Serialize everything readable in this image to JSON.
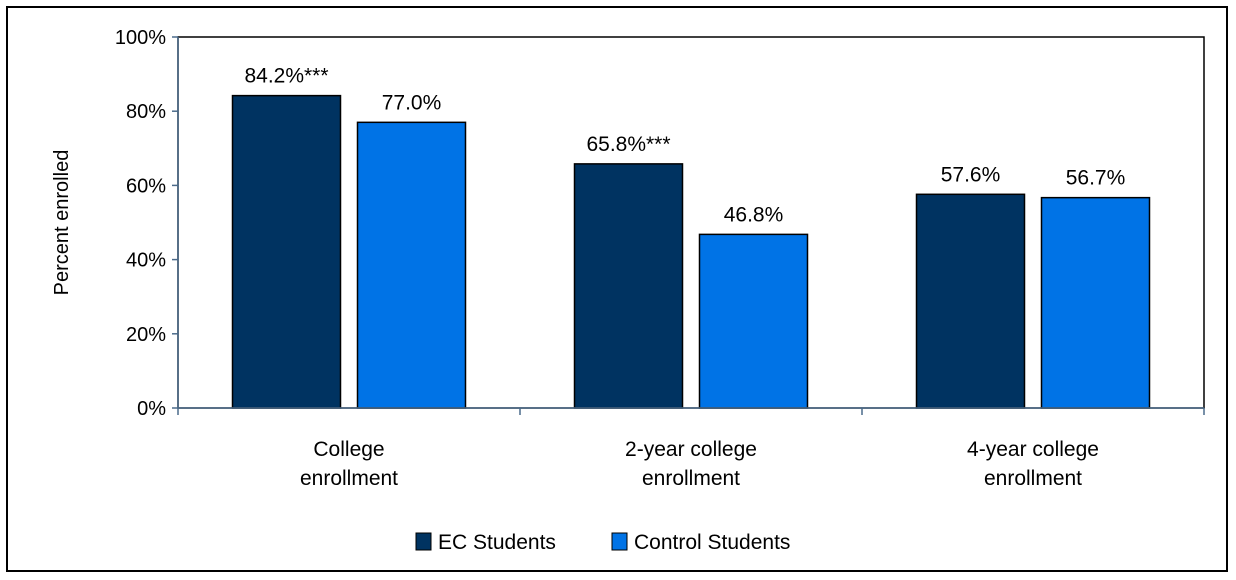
{
  "chart_data": {
    "type": "bar",
    "categories": [
      [
        "College",
        "enrollment"
      ],
      [
        "2-year college",
        "enrollment"
      ],
      [
        "4-year college",
        "enrollment"
      ]
    ],
    "series": [
      {
        "name": "EC Students",
        "color": "#003361",
        "values": [
          84.2,
          65.8,
          57.6
        ],
        "labels": [
          "84.2%***",
          "65.8%***",
          "57.6%"
        ]
      },
      {
        "name": "Control Students",
        "color": "#0073e6",
        "values": [
          77.0,
          46.8,
          56.7
        ],
        "labels": [
          "77.0%",
          "46.8%",
          "56.7%"
        ]
      }
    ],
    "ylabel": "Percent enrolled",
    "xlabel": "",
    "ylim": [
      0,
      100
    ],
    "yticks": [
      "0%",
      "20%",
      "40%",
      "60%",
      "80%",
      "100%"
    ],
    "grid": false,
    "legend_position": "bottom"
  }
}
